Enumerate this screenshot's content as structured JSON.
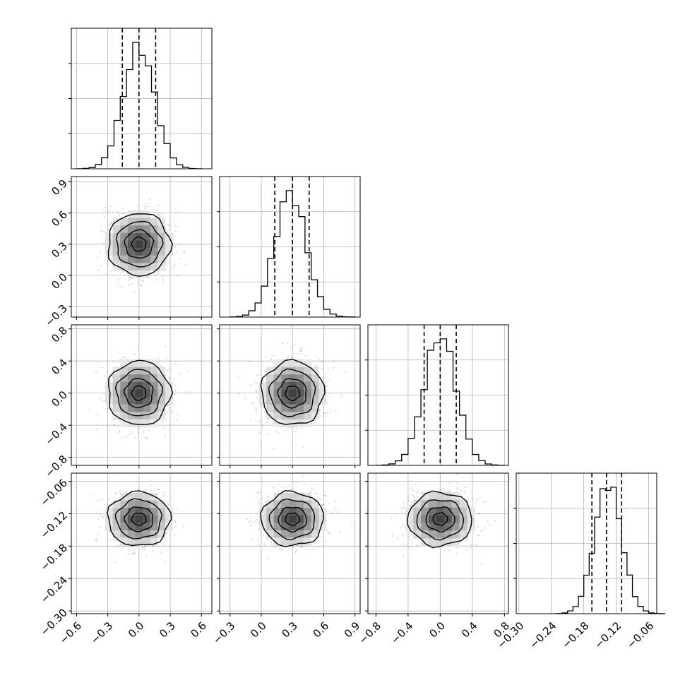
{
  "colors": {
    "hist": "#000000",
    "grid": "#b0b0b0",
    "scatter": "#6b6b6b",
    "contour": "#000000"
  },
  "chart_data": {
    "type": "corner",
    "grid": true,
    "quantile_lines": "dashed",
    "parameters": [
      {
        "range": [
          -0.65,
          0.7
        ],
        "ticks": [
          "−0.6",
          "−0.3",
          "0.0",
          "0.3",
          "0.6"
        ],
        "tick_values": [
          -0.6,
          -0.3,
          0.0,
          0.3,
          0.6
        ],
        "mean": 0.0,
        "std": 0.15,
        "quantiles": [
          -0.16,
          0.0,
          0.16
        ],
        "hist_peak": 0.0
      },
      {
        "range": [
          -0.4,
          0.95
        ],
        "ticks": [
          "−0.3",
          "0.0",
          "0.3",
          "0.6",
          "0.9"
        ],
        "tick_values": [
          -0.3,
          0.0,
          0.3,
          0.6,
          0.9
        ],
        "mean": 0.3,
        "std": 0.15,
        "quantiles": [
          0.13,
          0.3,
          0.46
        ],
        "hist_peak": 0.28
      },
      {
        "range": [
          -0.9,
          0.85
        ],
        "ticks": [
          "−0.8",
          "−0.4",
          "0.0",
          "0.4",
          "0.8"
        ],
        "tick_values": [
          -0.8,
          -0.4,
          0.0,
          0.4,
          0.8
        ],
        "mean": 0.0,
        "std": 0.2,
        "quantiles": [
          -0.2,
          0.0,
          0.2
        ],
        "hist_peak": 0.0
      },
      {
        "range": [
          -0.305,
          -0.045
        ],
        "ticks": [
          "−0.30",
          "−0.24",
          "−0.18",
          "−0.12",
          "−0.06"
        ],
        "tick_values": [
          -0.3,
          -0.24,
          -0.18,
          -0.12,
          -0.06
        ],
        "mean": -0.13,
        "std": 0.025,
        "quantiles": [
          -0.165,
          -0.138,
          -0.11
        ],
        "hist_peak": -0.135
      }
    ]
  }
}
